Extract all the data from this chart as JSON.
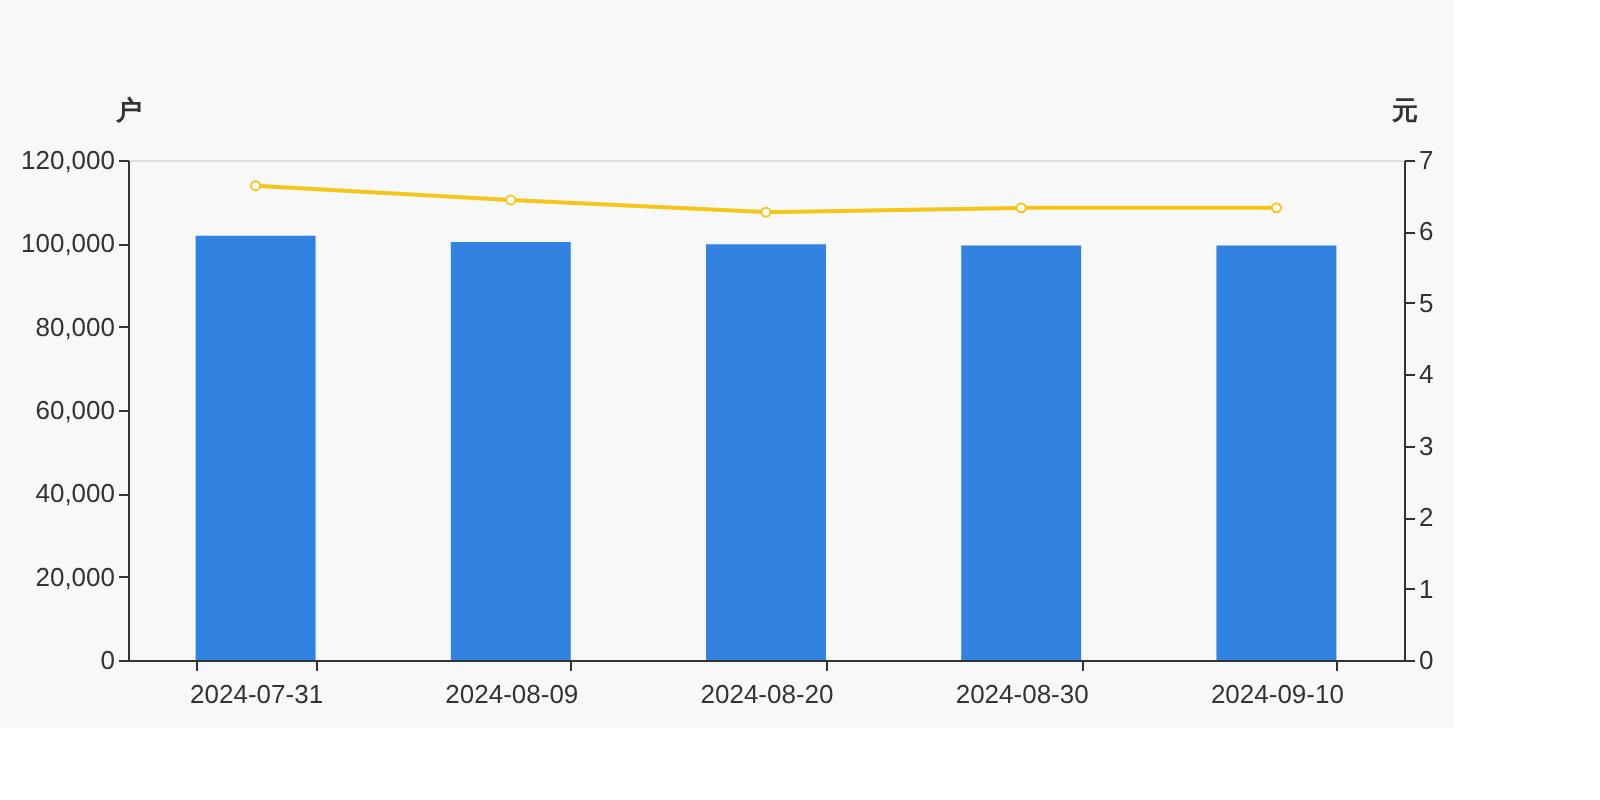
{
  "chart_data": {
    "type": "bar",
    "ylabel": "户",
    "y2label": "元",
    "categories": [
      "2024-07-31",
      "2024-08-09",
      "2024-08-20",
      "2024-08-30",
      "2024-09-10"
    ],
    "series": [
      {
        "color": "#3282e2",
        "values": [
          101800,
          100300,
          99800,
          99500,
          99500
        ]
      },
      {
        "type": "line",
        "axis": "y2",
        "color": "#f5c518",
        "values": [
          6.64,
          6.44,
          6.27,
          6.33,
          6.33
        ],
        "marker": "circle"
      }
    ],
    "ylim": [
      0,
      120000
    ],
    "yticks": [
      {
        "value": 0,
        "label": "0"
      },
      {
        "value": 20000,
        "label": "20,000"
      },
      {
        "value": 40000,
        "label": "40,000"
      },
      {
        "value": 60000,
        "label": "60,000"
      },
      {
        "value": 80000,
        "label": "80,000"
      },
      {
        "value": 100000,
        "label": "100,000"
      },
      {
        "value": 120000,
        "label": "120,000"
      }
    ],
    "y2lim": [
      0,
      7
    ],
    "y2ticks": [
      0,
      1,
      2,
      3,
      4,
      5,
      6,
      7
    ],
    "grid": false
  }
}
